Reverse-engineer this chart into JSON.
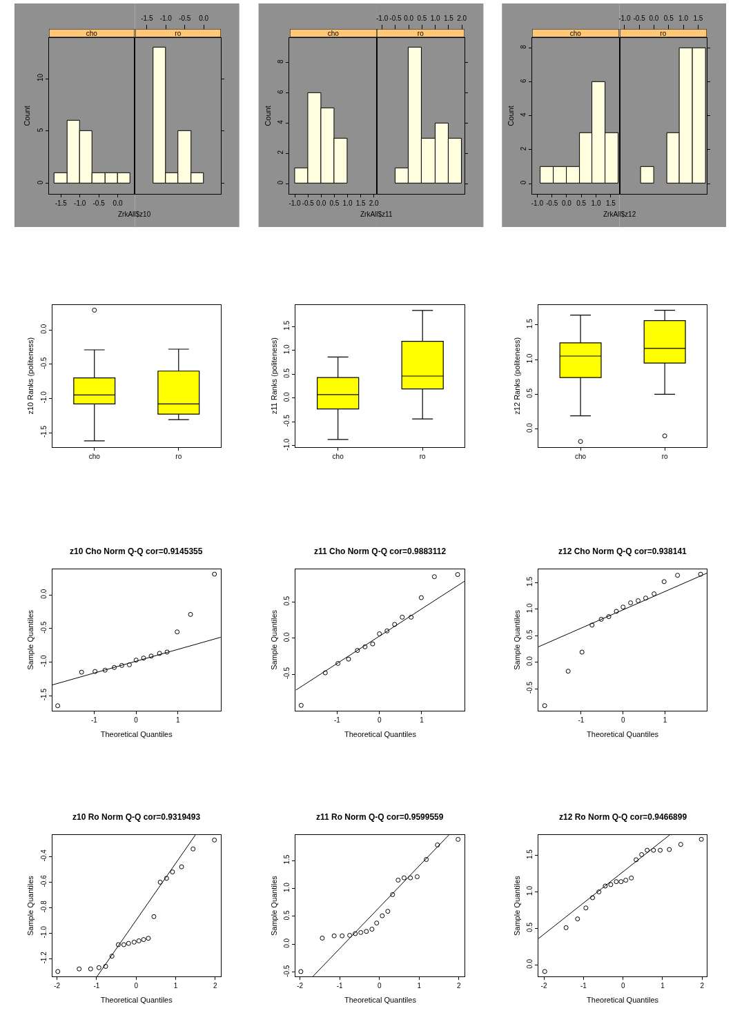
{
  "chart_data": [
    {
      "type": "histogram",
      "title": "cho",
      "xlabel": "ZrkAll$z10",
      "ylabel": "Count",
      "color": "#ffffe0",
      "bins": [
        -1.67,
        -1.33,
        -1.0,
        -0.67,
        -0.33,
        0.0,
        0.33
      ],
      "values": [
        1,
        6,
        5,
        1,
        1,
        1
      ],
      "xlim": [
        -1.82,
        0.45
      ],
      "ylim": [
        -1.0,
        13.9
      ],
      "xticks": [
        -1.5,
        {
          "value": -1.0,
          "label": "-1.0"
        },
        -0.5,
        {
          "value": 0.0,
          "label": "0.0"
        }
      ],
      "yticks": [
        0,
        5,
        10
      ]
    },
    {
      "type": "histogram",
      "title": "ro",
      "color": "#ffffe0",
      "bins": [
        -1.33,
        -1.0,
        -0.67,
        -0.33,
        0.0
      ],
      "values": [
        13,
        1,
        5,
        1
      ],
      "xlim": [
        -1.82,
        0.45
      ],
      "ylim": [
        -1.0,
        13.9
      ],
      "xticks": [
        -1.5,
        {
          "value": -1.0,
          "label": "-1.0"
        },
        -0.5,
        {
          "value": 0.0,
          "label": "0.0"
        }
      ],
      "yticks": [
        {
          "value": 0,
          "label": null
        },
        {
          "value": 5,
          "label": null
        },
        {
          "value": 10,
          "label": null
        }
      ],
      "tick_labels": "x"
    },
    {
      "type": "histogram",
      "title": "cho",
      "xlabel": "ZrkAll$z11",
      "ylabel": "Count",
      "color": "#ffffe0",
      "bins": [
        -1.0,
        -0.5,
        0.0,
        0.5,
        1.0,
        1.5,
        2.0
      ],
      "values": [
        1,
        6,
        5,
        3,
        0,
        0
      ],
      "xlim": [
        -1.2,
        2.11
      ],
      "ylim": [
        -0.68,
        9.64
      ],
      "xticks": [
        {
          "value": -1.0,
          "label": "-1.0"
        },
        -0.5,
        {
          "value": 0.0,
          "label": "0.0"
        },
        0.5,
        {
          "value": 1.0,
          "label": "1.0"
        },
        1.5,
        {
          "value": 2.0,
          "label": "2.0"
        }
      ],
      "yticks": [
        0,
        2,
        4,
        6,
        8
      ]
    },
    {
      "type": "histogram",
      "title": "ro",
      "color": "#ffffe0",
      "bins": [
        -1.0,
        -0.5,
        0.0,
        0.5,
        1.0,
        1.5,
        2.0
      ],
      "values": [
        0,
        1,
        9,
        3,
        4,
        3
      ],
      "xlim": [
        -1.2,
        2.11
      ],
      "ylim": [
        -0.68,
        9.64
      ],
      "xticks": [
        {
          "value": -1.0,
          "label": "-1.0"
        },
        -0.5,
        {
          "value": 0.0,
          "label": "0.0"
        },
        0.5,
        {
          "value": 1.0,
          "label": "1.0"
        },
        1.5,
        {
          "value": 2.0,
          "label": "2.0"
        }
      ],
      "yticks": [
        {
          "value": 0,
          "label": null
        },
        {
          "value": 2,
          "label": null
        },
        {
          "value": 4,
          "label": null
        },
        {
          "value": 6,
          "label": null
        },
        {
          "value": 8,
          "label": null
        }
      ],
      "tick_labels": "x"
    },
    {
      "type": "histogram",
      "title": "cho",
      "xlabel": "ZrkAll$z12",
      "ylabel": "Count",
      "color": "#ffffe0",
      "bins": [
        -0.88,
        -0.44,
        0.0,
        0.44,
        0.88,
        1.32,
        1.76
      ],
      "values": [
        1,
        1,
        1,
        3,
        6,
        3
      ],
      "xlim": [
        -1.17,
        1.8
      ],
      "ylim": [
        -0.61,
        8.6
      ],
      "xticks": [
        {
          "value": -1.0,
          "label": "-1.0"
        },
        -0.5,
        {
          "value": 0.0,
          "label": "0.0"
        },
        0.5,
        {
          "value": 1.0,
          "label": "1.0"
        },
        1.5
      ],
      "yticks": [
        0,
        2,
        4,
        6,
        8
      ]
    },
    {
      "type": "histogram",
      "title": "ro",
      "color": "#ffffe0",
      "bins": [
        -0.88,
        -0.44,
        0.0,
        0.44,
        0.88,
        1.32,
        1.76
      ],
      "values": [
        0,
        1,
        0,
        3,
        8,
        8
      ],
      "xlim": [
        -1.17,
        1.8
      ],
      "ylim": [
        -0.61,
        8.6
      ],
      "xticks": [
        {
          "value": -1.0,
          "label": "-1.0"
        },
        -0.5,
        {
          "value": 0.0,
          "label": "0.0"
        },
        0.5,
        {
          "value": 1.0,
          "label": "1.0"
        },
        1.5
      ],
      "yticks": [
        {
          "value": 0,
          "label": null
        },
        {
          "value": 2,
          "label": null
        },
        {
          "value": 4,
          "label": null
        },
        {
          "value": 6,
          "label": null
        },
        {
          "value": 8,
          "label": null
        }
      ],
      "tick_labels": "x"
    },
    {
      "type": "box",
      "ylabel": "z10 Ranks (politeness)",
      "color": "#ffff00",
      "categories": [
        "cho",
        "ro"
      ],
      "boxes": [
        {
          "low": -1.62,
          "q1": -1.08,
          "median": -0.95,
          "q3": -0.7,
          "high": -0.29,
          "outliers": [
            0.29
          ]
        },
        {
          "low": -1.31,
          "q1": -1.23,
          "median": -1.08,
          "q3": -0.6,
          "high": -0.28
        }
      ],
      "ylim": [
        -1.71,
        0.37
      ],
      "yticks": [
        -1.5,
        {
          "value": -1.0,
          "label": "-1.0"
        },
        -0.5,
        {
          "value": 0.0,
          "label": "0.0"
        }
      ]
    },
    {
      "type": "box",
      "ylabel": "z11 Ranks (politeness)",
      "color": "#ffff00",
      "categories": [
        "cho",
        "ro"
      ],
      "boxes": [
        {
          "low": -0.87,
          "q1": -0.23,
          "median": 0.07,
          "q3": 0.43,
          "high": 0.86
        },
        {
          "low": -0.44,
          "q1": 0.19,
          "median": 0.46,
          "q3": 1.19,
          "high": 1.84
        }
      ],
      "ylim": [
        -1.03,
        1.96
      ],
      "yticks": [
        {
          "value": -1.0,
          "label": "-1.0"
        },
        -0.5,
        {
          "value": 0.0,
          "label": "0.0"
        },
        0.5,
        {
          "value": 1.0,
          "label": "1.0"
        },
        1.5
      ]
    },
    {
      "type": "box",
      "ylabel": "z12 Ranks (politeness)",
      "color": "#ffff00",
      "categories": [
        "cho",
        "ro"
      ],
      "boxes": [
        {
          "low": 0.19,
          "q1": 0.74,
          "median": 1.05,
          "q3": 1.24,
          "high": 1.64,
          "outliers": [
            -0.18
          ]
        },
        {
          "low": 0.5,
          "q1": 0.95,
          "median": 1.16,
          "q3": 1.56,
          "high": 1.71,
          "outliers": [
            -0.1
          ]
        }
      ],
      "ylim": [
        -0.26,
        1.79
      ],
      "yticks": [
        {
          "value": 0.0,
          "label": "0.0"
        },
        0.5,
        {
          "value": 1.0,
          "label": "1.0"
        },
        1.5
      ]
    },
    {
      "type": "scatter",
      "title": "z10 Cho Norm Q-Q cor=0.9145355",
      "xlabel": "Theoretical Quantiles",
      "ylabel": "Sample Quantiles",
      "series": [
        {
          "marker": "circle",
          "color": "#000000",
          "x": [
            -1.87,
            -1.3,
            -0.98,
            -0.74,
            -0.52,
            -0.34,
            -0.16,
            0,
            0.18,
            0.36,
            0.56,
            0.74,
            0.98,
            1.3,
            1.87
          ],
          "values": [
            -1.65,
            -1.15,
            -1.14,
            -1.12,
            -1.08,
            -1.05,
            -1.04,
            -0.97,
            -0.94,
            -0.91,
            -0.87,
            -0.85,
            -0.55,
            -0.29,
            0.31
          ]
        },
        {
          "type": "line",
          "color": "#000000",
          "x": [
            -2.0,
            2.02
          ],
          "values": [
            -1.34,
            -0.63
          ]
        }
      ],
      "xlim": [
        -2.0,
        2.02
      ],
      "ylim": [
        -1.72,
        0.38
      ],
      "xticks": [
        -1,
        0,
        1
      ],
      "yticks": [
        -1.5,
        {
          "value": -1.0,
          "label": "-1.0"
        },
        -0.5,
        {
          "value": 0.0,
          "label": "0.0"
        }
      ]
    },
    {
      "type": "scatter",
      "title": "z11 Cho Norm Q-Q cor=0.9883112",
      "xlabel": "Theoretical Quantiles",
      "ylabel": "Sample Quantiles",
      "series": [
        {
          "marker": "circle",
          "color": "#000000",
          "x": [
            -1.85,
            -1.28,
            -0.98,
            -0.73,
            -0.52,
            -0.34,
            -0.16,
            0,
            0.18,
            0.36,
            0.54,
            0.75,
            0.99,
            1.3,
            1.85
          ],
          "values": [
            -0.93,
            -0.48,
            -0.35,
            -0.29,
            -0.17,
            -0.12,
            -0.08,
            0.06,
            0.1,
            0.19,
            0.29,
            0.29,
            0.56,
            0.85,
            0.88
          ]
        },
        {
          "type": "line",
          "color": "#000000",
          "x": [
            -1.98,
            2.02
          ],
          "values": [
            -0.72,
            0.79
          ]
        }
      ],
      "xlim": [
        -1.98,
        2.02
      ],
      "ylim": [
        -1.0,
        0.95
      ],
      "xticks": [
        -1,
        0,
        1
      ],
      "yticks": [
        -0.5,
        {
          "value": 0.0,
          "label": "0.0"
        },
        0.5
      ]
    },
    {
      "type": "scatter",
      "title": "z12 Cho Norm Q-Q cor=0.938141",
      "xlabel": "Theoretical Quantiles",
      "ylabel": "Sample Quantiles",
      "series": [
        {
          "marker": "circle",
          "color": "#000000",
          "x": [
            -1.87,
            -1.31,
            -0.98,
            -0.74,
            -0.52,
            -0.34,
            -0.16,
            0,
            0.18,
            0.36,
            0.54,
            0.74,
            0.98,
            1.3,
            1.85
          ],
          "values": [
            -0.82,
            -0.17,
            0.19,
            0.7,
            0.81,
            0.86,
            0.96,
            1.04,
            1.12,
            1.16,
            1.21,
            1.29,
            1.52,
            1.64,
            1.66
          ]
        },
        {
          "type": "line",
          "color": "#000000",
          "x": [
            -2.02,
            2.0
          ],
          "values": [
            0.29,
            1.68
          ]
        }
      ],
      "xlim": [
        -2.02,
        2.0
      ],
      "ylim": [
        -0.91,
        1.75
      ],
      "xticks": [
        -1,
        0,
        1
      ],
      "yticks": [
        -0.5,
        {
          "value": 0.0,
          "label": "0.0"
        },
        0.5,
        {
          "value": 1.0,
          "label": "1.0"
        },
        1.5
      ]
    },
    {
      "type": "scatter",
      "title": "z10 Ro Norm Q-Q cor=0.9319493",
      "xlabel": "Theoretical Quantiles",
      "ylabel": "Sample Quantiles",
      "series": [
        {
          "marker": "circle",
          "color": "#000000",
          "x": [
            -1.98,
            -1.44,
            -1.15,
            -0.94,
            -0.77,
            -0.61,
            -0.45,
            -0.31,
            -0.19,
            -0.05,
            0.07,
            0.19,
            0.31,
            0.45,
            0.61,
            0.77,
            0.92,
            1.15,
            1.44,
            1.98
          ],
          "values": [
            -1.3,
            -1.28,
            -1.28,
            -1.27,
            -1.26,
            -1.18,
            -1.09,
            -1.09,
            -1.08,
            -1.07,
            -1.06,
            -1.05,
            -1.04,
            -0.87,
            -0.6,
            -0.57,
            -0.52,
            -0.48,
            -0.34,
            -0.27
          ]
        },
        {
          "type": "line",
          "color": "#000000",
          "x": [
            -0.99,
            1.5
          ],
          "values": [
            -1.34,
            -0.23
          ]
        }
      ],
      "xlim": [
        -2.12,
        2.14
      ],
      "ylim": [
        -1.34,
        -0.23
      ],
      "xticks": [
        -2,
        -1,
        0,
        1,
        2
      ],
      "yticks": [
        -1.2,
        {
          "value": -1.0,
          "label": "-1.0"
        },
        -0.8,
        -0.6,
        -0.4
      ]
    },
    {
      "type": "scatter",
      "title": "z11 Ro Norm Q-Q cor=0.9599559",
      "xlabel": "Theoretical Quantiles",
      "ylabel": "Sample Quantiles",
      "series": [
        {
          "marker": "circle",
          "color": "#000000",
          "x": [
            -1.98,
            -1.44,
            -1.14,
            -0.94,
            -0.75,
            -0.61,
            -0.47,
            -0.33,
            -0.19,
            -0.07,
            0.07,
            0.21,
            0.33,
            0.47,
            0.62,
            0.78,
            0.95,
            1.18,
            1.46,
            1.98
          ],
          "values": [
            -0.49,
            0.11,
            0.15,
            0.15,
            0.16,
            0.19,
            0.21,
            0.23,
            0.27,
            0.38,
            0.51,
            0.59,
            0.89,
            1.15,
            1.19,
            1.19,
            1.21,
            1.52,
            1.78,
            1.88
          ]
        },
        {
          "type": "line",
          "color": "#000000",
          "x": [
            -1.68,
            1.75
          ],
          "values": [
            -0.58,
            1.96
          ]
        }
      ],
      "xlim": [
        -2.11,
        2.15
      ],
      "ylim": [
        -0.58,
        1.96
      ],
      "xticks": [
        -2,
        -1,
        0,
        1,
        2
      ],
      "yticks": [
        -0.5,
        {
          "value": 0.0,
          "label": "0.0"
        },
        0.5,
        {
          "value": 1.0,
          "label": "1.0"
        },
        1.5
      ]
    },
    {
      "type": "scatter",
      "title": "z12 Ro Norm Q-Q cor=0.9466899",
      "xlabel": "Theoretical Quantiles",
      "ylabel": "Sample Quantiles",
      "series": [
        {
          "marker": "circle",
          "color": "#000000",
          "x": [
            -1.98,
            -1.44,
            -1.15,
            -0.94,
            -0.77,
            -0.61,
            -0.45,
            -0.31,
            -0.17,
            -0.05,
            0.07,
            0.21,
            0.33,
            0.47,
            0.61,
            0.77,
            0.94,
            1.17,
            1.46,
            1.98
          ],
          "values": [
            -0.09,
            0.51,
            0.63,
            0.78,
            0.92,
            1.0,
            1.08,
            1.1,
            1.14,
            1.14,
            1.16,
            1.19,
            1.44,
            1.51,
            1.57,
            1.57,
            1.57,
            1.58,
            1.65,
            1.72
          ]
        },
        {
          "type": "line",
          "color": "#000000",
          "x": [
            -2.14,
            1.18
          ],
          "values": [
            0.36,
            1.78
          ]
        }
      ],
      "xlim": [
        -2.14,
        2.12
      ],
      "ylim": [
        -0.16,
        1.78
      ],
      "xticks": [
        -2,
        -1,
        0,
        1,
        2
      ],
      "yticks": [
        {
          "value": 0.0,
          "label": "0.0"
        },
        0.5,
        {
          "value": 1.0,
          "label": "1.0"
        },
        1.5
      ]
    }
  ]
}
